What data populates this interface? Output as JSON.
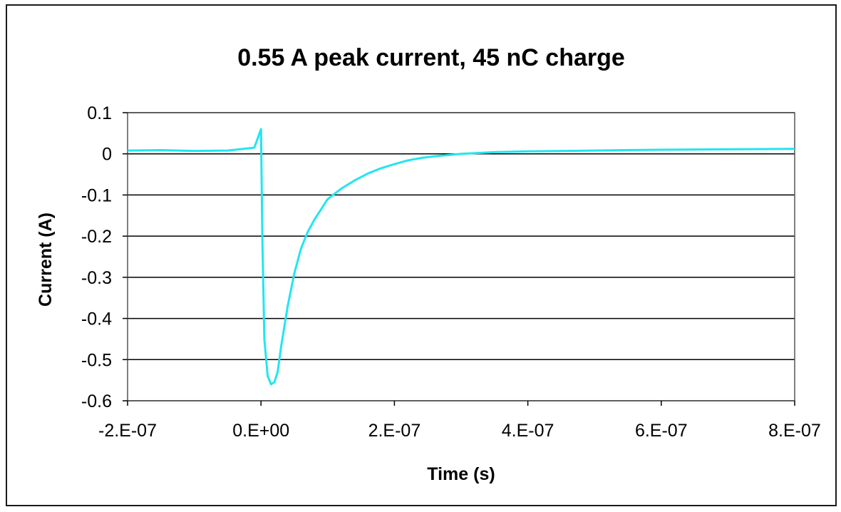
{
  "chart_data": {
    "type": "line",
    "title": "0.55 A peak current, 45 nC charge",
    "xlabel": "Time (s)",
    "ylabel": "Current (A)",
    "xlim": [
      -2e-07,
      8e-07
    ],
    "ylim": [
      -0.6,
      0.1
    ],
    "x_ticks": [
      -2e-07,
      0,
      2e-07,
      4e-07,
      6e-07,
      8e-07
    ],
    "x_tick_labels": [
      "-2.E-07",
      "0.E+00",
      "2.E-07",
      "4.E-07",
      "6.E-07",
      "8.E-07"
    ],
    "y_ticks": [
      0.1,
      0,
      -0.1,
      -0.2,
      -0.3,
      -0.4,
      -0.5,
      -0.6
    ],
    "y_tick_labels": [
      "0.1",
      "0",
      "-0.1",
      "-0.2",
      "-0.3",
      "-0.4",
      "-0.5",
      "-0.6"
    ],
    "grid": "horizontal",
    "legend": "none",
    "series_color": "#22e5f0",
    "series": [
      {
        "x": [
          -2e-07,
          -1.5e-07,
          -1e-07,
          -5e-08,
          -1e-08,
          0,
          2e-09,
          5e-09,
          1e-08,
          1.5e-08,
          2e-08,
          2.5e-08,
          3e-08,
          4e-08,
          5e-08,
          6e-08,
          7e-08,
          8e-08,
          9e-08,
          1e-07,
          1.2e-07,
          1.4e-07,
          1.6e-07,
          1.8e-07,
          2e-07,
          2.2e-07,
          2.4e-07,
          2.6e-07,
          2.8e-07,
          3e-07,
          3.5e-07,
          4e-07,
          5e-07,
          6e-07,
          7e-07,
          8e-07
        ],
        "y": [
          0.008,
          0.009,
          0.007,
          0.008,
          0.015,
          0.06,
          -0.2,
          -0.45,
          -0.54,
          -0.56,
          -0.555,
          -0.53,
          -0.47,
          -0.37,
          -0.29,
          -0.23,
          -0.19,
          -0.16,
          -0.135,
          -0.11,
          -0.085,
          -0.065,
          -0.048,
          -0.035,
          -0.025,
          -0.016,
          -0.01,
          -0.006,
          -0.003,
          0.0,
          0.004,
          0.006,
          0.008,
          0.01,
          0.011,
          0.012
        ]
      }
    ]
  }
}
